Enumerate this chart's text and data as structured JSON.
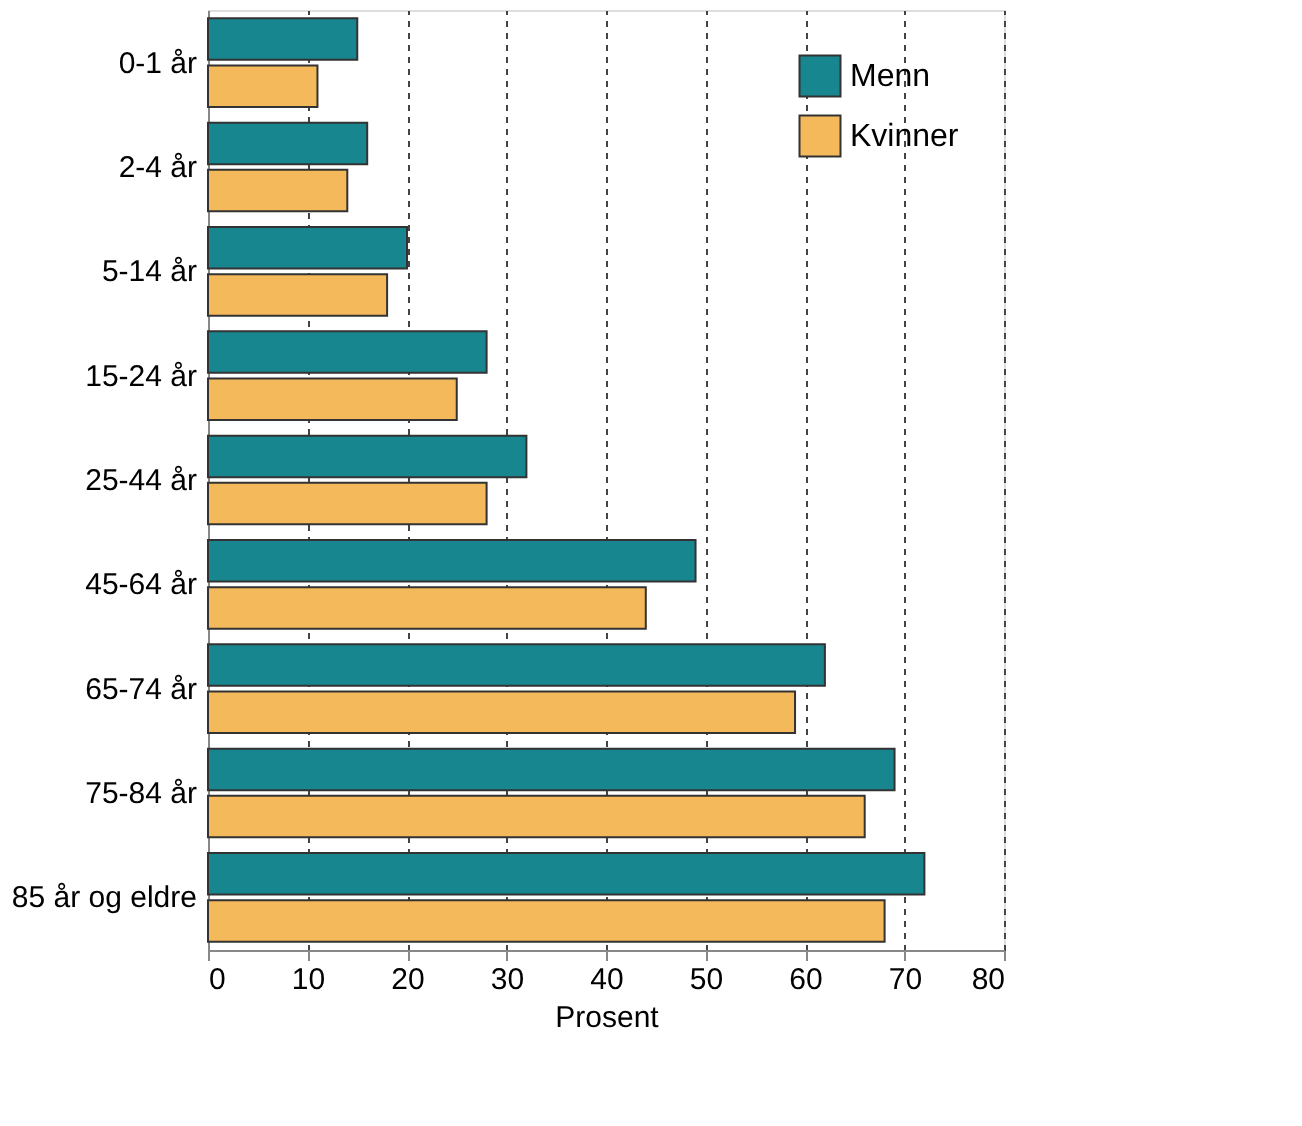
{
  "chart_data": {
    "type": "bar",
    "orientation": "horizontal",
    "xlabel": "Prosent",
    "categories": [
      "0-1 år",
      "2-4 år",
      "5-14 år",
      "15-24 år",
      "25-44 år",
      "45-64 år",
      "65-74 år",
      "75-84 år",
      "85 år og eldre"
    ],
    "series": [
      {
        "name": "Menn",
        "color": "#17868f",
        "values": [
          15,
          16,
          20,
          28,
          32,
          49,
          62,
          69,
          72
        ]
      },
      {
        "name": "Kvinner",
        "color": "#f4b95a",
        "values": [
          11,
          14,
          18,
          25,
          28,
          44,
          59,
          66,
          68
        ]
      }
    ],
    "xlim": [
      0,
      80
    ],
    "xticks": [
      0,
      10,
      20,
      30,
      40,
      50,
      60,
      70,
      80
    ],
    "grid": "x",
    "legend": "top right"
  }
}
